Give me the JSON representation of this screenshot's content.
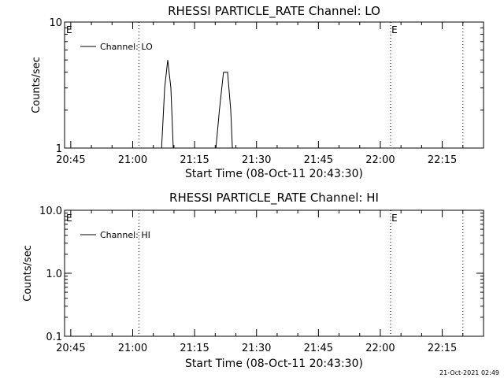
{
  "chart_data": [
    {
      "type": "line",
      "title": "RHESSI PARTICLE_RATE Channel: LO",
      "xlabel": "Start Time (08-Oct-11 20:43:30)",
      "ylabel": "Counts/sec",
      "yscale": "log",
      "ylim": [
        1,
        10
      ],
      "yticks": [
        "1",
        "10"
      ],
      "xlim": [
        "20:43:30",
        "22:25:00"
      ],
      "xticks": [
        "20:45",
        "21:00",
        "21:15",
        "21:30",
        "21:45",
        "22:00",
        "22:15"
      ],
      "grid": false,
      "legend": {
        "entries": [
          "Channel: LO"
        ],
        "placement": "top-left"
      },
      "markers": [
        {
          "time": "21:01:30",
          "label": ""
        },
        {
          "time": "22:02:30",
          "label": "E"
        },
        {
          "time": "22:20:00",
          "label": ""
        }
      ],
      "edge_label": "E",
      "series": [
        {
          "name": "Channel: LO",
          "segments": [
            [
              [
                "21:07:00",
                1
              ],
              [
                "21:07:45",
                3
              ],
              [
                "21:08:30",
                5
              ],
              [
                "21:09:15",
                3
              ],
              [
                "21:09:50",
                1
              ]
            ],
            [
              [
                "21:20:10",
                1
              ],
              [
                "21:21:00",
                2
              ],
              [
                "21:22:00",
                4
              ],
              [
                "21:23:00",
                4
              ],
              [
                "21:23:45",
                2
              ],
              [
                "21:24:10",
                1
              ]
            ]
          ]
        }
      ]
    },
    {
      "type": "line",
      "title": "RHESSI PARTICLE_RATE Channel: HI",
      "xlabel": "Start Time (08-Oct-11 20:43:30)",
      "ylabel": "Counts/sec",
      "yscale": "log",
      "ylim": [
        0.1,
        10
      ],
      "yticks": [
        "0.1",
        "1.0",
        "10.0"
      ],
      "xlim": [
        "20:43:30",
        "22:25:00"
      ],
      "xticks": [
        "20:45",
        "21:00",
        "21:15",
        "21:30",
        "21:45",
        "22:00",
        "22:15"
      ],
      "grid": false,
      "legend": {
        "entries": [
          "Channel: HI"
        ],
        "placement": "top-left"
      },
      "markers": [
        {
          "time": "21:01:30",
          "label": ""
        },
        {
          "time": "22:02:30",
          "label": "E"
        },
        {
          "time": "22:20:00",
          "label": ""
        }
      ],
      "edge_label": "E",
      "series": [
        {
          "name": "Channel: HI",
          "segments": []
        }
      ]
    }
  ],
  "footer": {
    "timestamp": "21-Oct-2021 02:49"
  }
}
